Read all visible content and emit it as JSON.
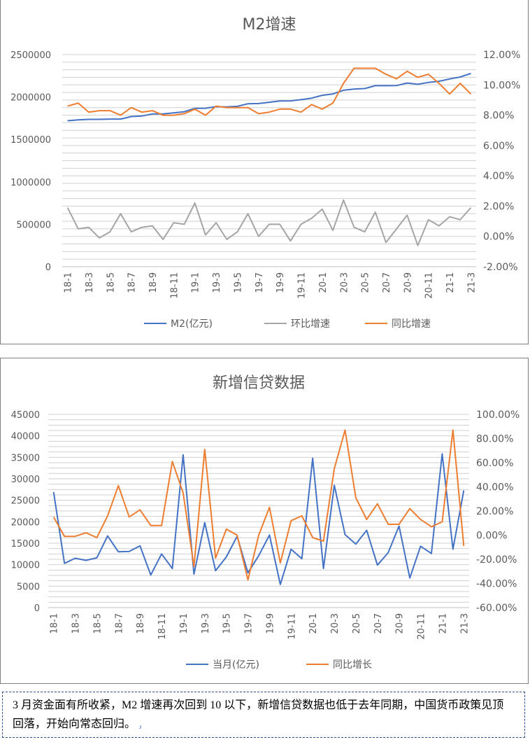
{
  "chart_data": [
    {
      "type": "line",
      "title": "M2增速",
      "categories": [
        "18-1",
        "18-2",
        "18-3",
        "18-4",
        "18-5",
        "18-6",
        "18-7",
        "18-8",
        "18-9",
        "18-10",
        "18-11",
        "18-12",
        "19-1",
        "19-2",
        "19-3",
        "19-4",
        "19-5",
        "19-6",
        "19-7",
        "19-8",
        "19-9",
        "19-10",
        "19-11",
        "19-12",
        "20-1",
        "20-2",
        "20-3",
        "20-4",
        "20-5",
        "20-6",
        "20-7",
        "20-8",
        "20-9",
        "20-10",
        "20-11",
        "20-12",
        "21-1",
        "21-2",
        "21-3"
      ],
      "tick_labels": [
        "18-1",
        "18-3",
        "18-5",
        "18-7",
        "18-9",
        "18-11",
        "19-1",
        "19-3",
        "19-5",
        "19-7",
        "19-9",
        "19-11",
        "20-1",
        "20-3",
        "20-5",
        "20-7",
        "20-9",
        "20-11",
        "21-1",
        "21-3"
      ],
      "y_left": {
        "min": 0,
        "max": 2500000,
        "step": 500000,
        "labels": [
          "0",
          "500000",
          "1000000",
          "1500000",
          "2000000",
          "2500000"
        ]
      },
      "y_right": {
        "min": -0.02,
        "max": 0.12,
        "labels": [
          "-2.00%",
          "0.00%",
          "2.00%",
          "4.00%",
          "6.00%",
          "8.00%",
          "10.00%",
          "12.00%"
        ]
      },
      "series": [
        {
          "name": "M2(亿元)",
          "axis": "left",
          "color": "#4472c4",
          "values": [
            1720000,
            1730000,
            1737000,
            1737000,
            1740000,
            1740000,
            1770000,
            1776000,
            1800000,
            1800000,
            1813000,
            1827000,
            1866000,
            1868000,
            1886000,
            1884000,
            1890000,
            1921000,
            1923000,
            1938000,
            1953000,
            1955000,
            1969000,
            1987000,
            2021000,
            2036000,
            2080000,
            2094000,
            2100000,
            2134000,
            2134000,
            2135000,
            2165000,
            2150000,
            2172000,
            2186000,
            2213000,
            2236000,
            2278000
          ]
        },
        {
          "name": "环比增速",
          "axis": "right",
          "color": "#a5a5a5",
          "values": [
            0.019,
            0.005,
            0.006,
            -0.001,
            0.003,
            0.015,
            0.003,
            0.006,
            0.007,
            -0.002,
            0.009,
            0.008,
            0.022,
            0.001,
            0.009,
            -0.002,
            0.003,
            0.015,
            0.0,
            0.008,
            0.008,
            -0.003,
            0.008,
            0.012,
            0.018,
            0.004,
            0.024,
            0.006,
            0.003,
            0.016,
            -0.004,
            0.005,
            0.014,
            -0.006,
            0.011,
            0.007,
            0.013,
            0.011,
            0.019
          ]
        },
        {
          "name": "同比增速",
          "axis": "right",
          "color": "#ed7d31",
          "values": [
            0.086,
            0.088,
            0.082,
            0.083,
            0.083,
            0.08,
            0.085,
            0.082,
            0.083,
            0.08,
            0.08,
            0.081,
            0.084,
            0.08,
            0.086,
            0.085,
            0.085,
            0.085,
            0.081,
            0.082,
            0.084,
            0.084,
            0.082,
            0.087,
            0.084,
            0.088,
            0.101,
            0.111,
            0.111,
            0.111,
            0.107,
            0.104,
            0.109,
            0.105,
            0.107,
            0.101,
            0.094,
            0.101,
            0.094
          ]
        }
      ]
    },
    {
      "type": "line",
      "title": "新增信贷数据",
      "categories": [
        "18-1",
        "18-2",
        "18-3",
        "18-4",
        "18-5",
        "18-6",
        "18-7",
        "18-8",
        "18-9",
        "18-10",
        "18-11",
        "18-12",
        "19-1",
        "19-2",
        "19-3",
        "19-4",
        "19-5",
        "19-6",
        "19-7",
        "19-8",
        "19-9",
        "19-10",
        "19-11",
        "19-12",
        "20-1",
        "20-2",
        "20-3",
        "20-4",
        "20-5",
        "20-6",
        "20-7",
        "20-8",
        "20-9",
        "20-10",
        "20-11",
        "20-12",
        "21-1",
        "21-2",
        "21-3"
      ],
      "tick_labels": [
        "18-1",
        "18-3",
        "18-5",
        "18-7",
        "18-9",
        "18-11",
        "19-1",
        "19-3",
        "19-5",
        "19-7",
        "19-9",
        "19-11",
        "20-1",
        "20-3",
        "20-5",
        "20-7",
        "20-9",
        "20-11",
        "21-1",
        "21-3"
      ],
      "y_left": {
        "min": 0,
        "max": 45000,
        "step": 5000,
        "labels": [
          "0",
          "5000",
          "10000",
          "15000",
          "20000",
          "25000",
          "30000",
          "35000",
          "40000",
          "45000"
        ]
      },
      "y_right": {
        "min": -0.6,
        "max": 1.0,
        "labels": [
          "-60.00%",
          "-40.00%",
          "-20.00%",
          "0.00%",
          "20.00%",
          "40.00%",
          "60.00%",
          "80.00%",
          "100.00%"
        ]
      },
      "series": [
        {
          "name": "当月(亿元)",
          "axis": "left",
          "color": "#4472c4",
          "values": [
            26900,
            10300,
            11500,
            11000,
            11600,
            16700,
            13000,
            13100,
            14400,
            7600,
            12500,
            9100,
            35600,
            7800,
            19800,
            8600,
            11800,
            16600,
            8100,
            12100,
            16900,
            5400,
            13600,
            11400,
            34800,
            9100,
            28500,
            17000,
            14800,
            18000,
            9900,
            12800,
            19000,
            6900,
            14300,
            12600,
            35800,
            13600,
            27300
          ]
        },
        {
          "name": "同比增长",
          "axis": "right",
          "color": "#ed7d31",
          "values": [
            0.15,
            -0.01,
            -0.01,
            0.02,
            -0.02,
            0.16,
            0.41,
            0.15,
            0.21,
            0.08,
            0.08,
            0.61,
            0.35,
            -0.26,
            0.71,
            -0.19,
            0.05,
            0.0,
            -0.37,
            0.0,
            0.23,
            -0.23,
            0.12,
            0.16,
            -0.02,
            -0.05,
            0.55,
            0.87,
            0.31,
            0.13,
            0.26,
            0.09,
            0.09,
            0.22,
            0.13,
            0.07,
            0.11,
            0.87,
            -0.09
          ]
        }
      ]
    }
  ],
  "caption": {
    "text": "3 月资金面有所收紧，M2 增速再次回到 10 以下，新增信贷数据也低于去年同期，中国货币政策见顶回落，开始向常态回归。",
    "mark": "⸥"
  }
}
